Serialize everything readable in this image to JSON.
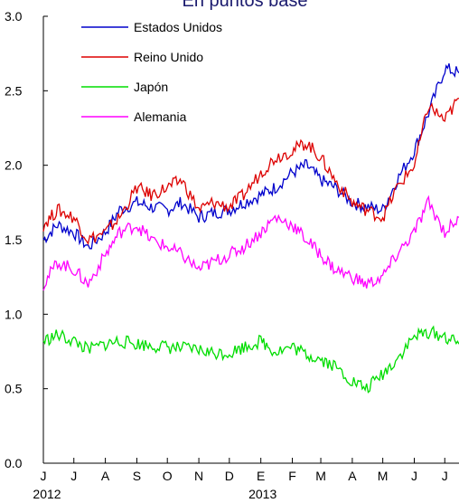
{
  "chart_data": {
    "type": "line",
    "title": "En puntos base",
    "xlabel": "",
    "ylabel": "",
    "ylim": [
      0,
      3.0
    ],
    "y_ticks": [
      "0.0",
      "0.5",
      "1.0",
      "1.5",
      "2.0",
      "2.5",
      "3.0"
    ],
    "x_ticks": [
      "J",
      "J",
      "A",
      "S",
      "O",
      "N",
      "D",
      "E",
      "F",
      "M",
      "A",
      "M",
      "J",
      "J"
    ],
    "year_labels": [
      "2012",
      "2013"
    ],
    "x_start": "2012-06-01",
    "x_end": "2013-07-15",
    "grid": false,
    "legend_position": "top-left",
    "series": [
      {
        "name": "Estados Unidos",
        "color": "#0000cc",
        "x": [
          "2012-06-01",
          "2012-06-15",
          "2012-07-01",
          "2012-07-15",
          "2012-08-01",
          "2012-08-15",
          "2012-09-01",
          "2012-09-15",
          "2012-10-01",
          "2012-10-15",
          "2012-11-01",
          "2012-11-15",
          "2012-12-01",
          "2012-12-15",
          "2013-01-01",
          "2013-01-15",
          "2013-02-01",
          "2013-02-15",
          "2013-03-01",
          "2013-03-15",
          "2013-04-01",
          "2013-04-15",
          "2013-05-01",
          "2013-05-15",
          "2013-06-01",
          "2013-06-15",
          "2013-07-01",
          "2013-07-15"
        ],
        "values": [
          1.5,
          1.6,
          1.55,
          1.45,
          1.55,
          1.7,
          1.75,
          1.72,
          1.7,
          1.75,
          1.65,
          1.68,
          1.7,
          1.75,
          1.8,
          1.85,
          1.95,
          2.0,
          1.9,
          1.85,
          1.75,
          1.72,
          1.7,
          1.9,
          2.1,
          2.35,
          2.65,
          2.62
        ]
      },
      {
        "name": "Reino Unido",
        "color": "#dd0000",
        "x": [
          "2012-06-01",
          "2012-06-15",
          "2012-07-01",
          "2012-07-15",
          "2012-08-01",
          "2012-08-15",
          "2012-09-01",
          "2012-09-15",
          "2012-10-01",
          "2012-10-15",
          "2012-11-01",
          "2012-11-15",
          "2012-12-01",
          "2012-12-15",
          "2013-01-01",
          "2013-01-15",
          "2013-02-01",
          "2013-02-15",
          "2013-03-01",
          "2013-03-15",
          "2013-04-01",
          "2013-04-15",
          "2013-05-01",
          "2013-05-15",
          "2013-06-01",
          "2013-06-15",
          "2013-07-01",
          "2013-07-15"
        ],
        "values": [
          1.6,
          1.7,
          1.65,
          1.5,
          1.55,
          1.65,
          1.85,
          1.8,
          1.85,
          1.9,
          1.7,
          1.75,
          1.72,
          1.8,
          1.95,
          2.05,
          2.1,
          2.15,
          2.05,
          1.9,
          1.75,
          1.7,
          1.65,
          1.85,
          2.0,
          2.4,
          2.3,
          2.45
        ]
      },
      {
        "name": "Japón",
        "color": "#00dd00",
        "x": [
          "2012-06-01",
          "2012-06-15",
          "2012-07-01",
          "2012-07-15",
          "2012-08-01",
          "2012-08-15",
          "2012-09-01",
          "2012-09-15",
          "2012-10-01",
          "2012-10-15",
          "2012-11-01",
          "2012-11-15",
          "2012-12-01",
          "2012-12-15",
          "2013-01-01",
          "2013-01-15",
          "2013-02-01",
          "2013-02-15",
          "2013-03-01",
          "2013-03-15",
          "2013-04-01",
          "2013-04-15",
          "2013-05-01",
          "2013-05-15",
          "2013-06-01",
          "2013-06-15",
          "2013-07-01",
          "2013-07-15"
        ],
        "values": [
          0.82,
          0.86,
          0.82,
          0.76,
          0.8,
          0.82,
          0.8,
          0.79,
          0.78,
          0.77,
          0.76,
          0.74,
          0.74,
          0.78,
          0.82,
          0.75,
          0.78,
          0.73,
          0.7,
          0.65,
          0.55,
          0.5,
          0.6,
          0.7,
          0.85,
          0.88,
          0.85,
          0.8
        ]
      },
      {
        "name": "Alemania",
        "color": "#ff00ff",
        "x": [
          "2012-06-01",
          "2012-06-15",
          "2012-07-01",
          "2012-07-15",
          "2012-08-01",
          "2012-08-15",
          "2012-09-01",
          "2012-09-15",
          "2012-10-01",
          "2012-10-15",
          "2012-11-01",
          "2012-11-15",
          "2012-12-01",
          "2012-12-15",
          "2013-01-01",
          "2013-01-15",
          "2013-02-01",
          "2013-02-15",
          "2013-03-01",
          "2013-03-15",
          "2013-04-01",
          "2013-04-15",
          "2013-05-01",
          "2013-05-15",
          "2013-06-01",
          "2013-06-15",
          "2013-07-01",
          "2013-07-15"
        ],
        "values": [
          1.2,
          1.35,
          1.3,
          1.2,
          1.4,
          1.55,
          1.6,
          1.5,
          1.45,
          1.4,
          1.3,
          1.35,
          1.4,
          1.45,
          1.55,
          1.65,
          1.6,
          1.5,
          1.4,
          1.3,
          1.25,
          1.2,
          1.25,
          1.4,
          1.55,
          1.75,
          1.55,
          1.65
        ]
      }
    ]
  }
}
